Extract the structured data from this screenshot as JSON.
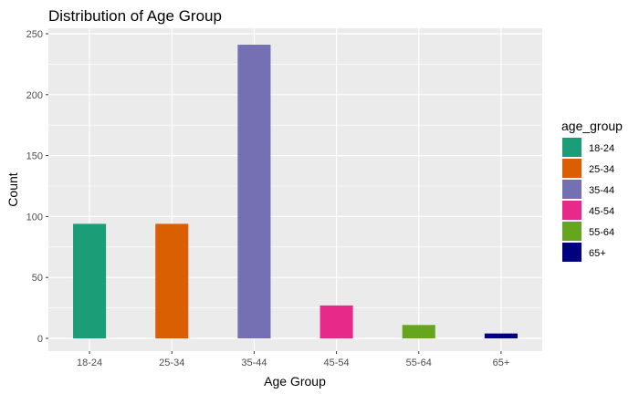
{
  "chart_data": {
    "type": "bar",
    "title": "Distribution of Age Group",
    "xlabel": "Age Group",
    "ylabel": "Count",
    "categories": [
      "18-24",
      "25-34",
      "35-44",
      "45-54",
      "55-64",
      "65+"
    ],
    "values": [
      94,
      94,
      241,
      27,
      11,
      4
    ],
    "colors": [
      "#1b9e77",
      "#d95f02",
      "#7570b3",
      "#e7298a",
      "#66a61e",
      "#000080"
    ],
    "ylim": [
      0,
      250
    ],
    "yticks": [
      0,
      50,
      100,
      150,
      200,
      250
    ],
    "grid": true,
    "legend": {
      "title": "age_group",
      "position": "right",
      "entries": [
        "18-24",
        "25-34",
        "35-44",
        "45-54",
        "55-64",
        "65+"
      ]
    }
  }
}
